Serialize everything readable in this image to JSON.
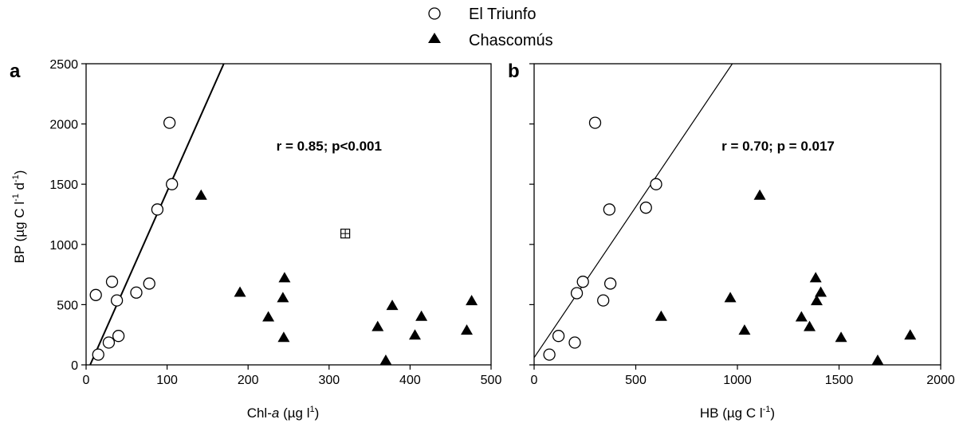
{
  "legend": {
    "items": [
      {
        "label": "El Triunfo",
        "marker": "circle-open"
      },
      {
        "label": "Chascomús",
        "marker": "triangle-filled"
      }
    ]
  },
  "colors": {
    "axis": "#000000",
    "marker_fill_open": "#ffffff",
    "marker_fill_filled": "#000000"
  },
  "chart_data": [
    {
      "type": "scatter",
      "panel_label": "a",
      "xlabel": "Chl-a (µg l¹)",
      "xlabel_parts": {
        "pre": "Chl-",
        "italic": "a",
        "post": " (µg l",
        "sup": "1",
        "tail": ")"
      },
      "ylabel": "BP (µg C l⁻¹ d⁻¹)",
      "ylabel_parts": {
        "a": "BP (µg C l",
        "sup1": "-1",
        "b": " d",
        "sup2": "-1",
        "c": ")"
      },
      "xlim": [
        0,
        500
      ],
      "ylim": [
        0,
        2500
      ],
      "xticks": [
        0,
        100,
        200,
        300,
        400,
        500
      ],
      "yticks": [
        0,
        500,
        1000,
        1500,
        2000,
        2500
      ],
      "annotation": "r = 0.85; p<0.001",
      "annotation_pos": {
        "x": 300,
        "y": 1780
      },
      "regression": {
        "x1": 5,
        "y1": 0,
        "x2": 170,
        "y2": 2500
      },
      "outlier": {
        "x": 320,
        "y": 1090,
        "marker": "square-crossed"
      },
      "series": [
        {
          "name": "El Triunfo",
          "marker": "circle-open",
          "x": [
            12,
            15,
            28,
            32,
            38,
            40,
            62,
            78,
            88,
            103,
            106
          ],
          "y": [
            580,
            85,
            185,
            690,
            535,
            240,
            600,
            675,
            1290,
            2010,
            1500
          ]
        },
        {
          "name": "Chascomús",
          "marker": "triangle-filled",
          "x": [
            142,
            190,
            225,
            243,
            244,
            245,
            360,
            370,
            378,
            406,
            414,
            470,
            476
          ],
          "y": [
            1410,
            605,
            400,
            560,
            230,
            725,
            320,
            40,
            495,
            250,
            405,
            290,
            535
          ]
        }
      ]
    },
    {
      "type": "scatter",
      "panel_label": "b",
      "xlabel": "HB (µg C l⁻¹)",
      "xlabel_parts": {
        "pre": "HB (µg C l",
        "sup": "-1",
        "tail": ")"
      },
      "ylabel": "",
      "xlim": [
        0,
        2000
      ],
      "ylim": [
        0,
        2500
      ],
      "xticks": [
        0,
        500,
        1000,
        1500,
        2000
      ],
      "yticks": [
        0,
        500,
        1000,
        1500,
        2000,
        2500
      ],
      "annotation": "r = 0.70; p = 0.017",
      "annotation_pos": {
        "x": 1200,
        "y": 1780
      },
      "regression": {
        "x1": 0,
        "y1": 60,
        "x2": 975,
        "y2": 2500
      },
      "series": [
        {
          "name": "El Triunfo",
          "marker": "circle-open",
          "x": [
            75,
            120,
            200,
            210,
            240,
            300,
            340,
            370,
            375,
            550,
            600
          ],
          "y": [
            85,
            240,
            185,
            595,
            690,
            2010,
            535,
            1290,
            675,
            1305,
            1500
          ]
        },
        {
          "name": "Chascomús",
          "marker": "triangle-filled",
          "x": [
            625,
            965,
            1035,
            1110,
            1315,
            1355,
            1385,
            1390,
            1410,
            1510,
            1690,
            1850
          ],
          "y": [
            405,
            560,
            290,
            1410,
            400,
            320,
            725,
            535,
            605,
            230,
            40,
            250
          ]
        }
      ]
    }
  ]
}
